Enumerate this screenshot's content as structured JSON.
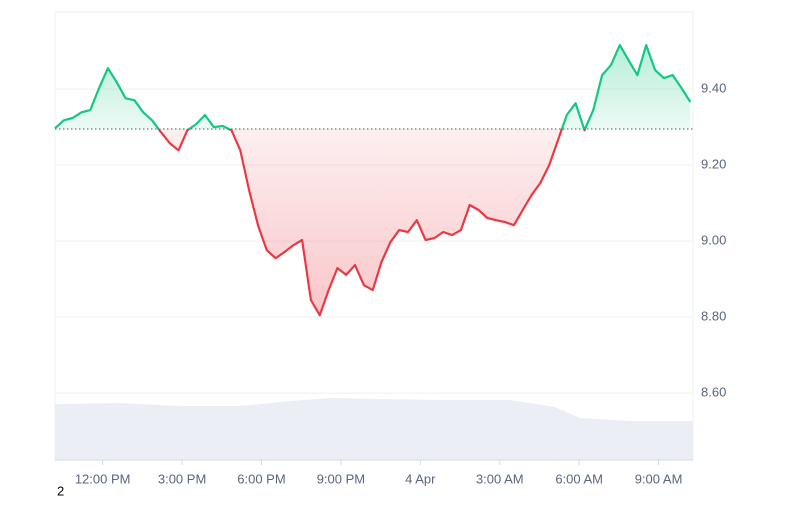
{
  "chart_data": {
    "type": "baseline-line",
    "values": [
      9.297,
      9.318,
      9.324,
      9.339,
      9.345,
      9.403,
      9.455,
      9.418,
      9.376,
      9.371,
      9.339,
      9.318,
      9.287,
      9.258,
      9.239,
      9.292,
      9.308,
      9.332,
      9.3,
      9.303,
      9.292,
      9.239,
      9.134,
      9.042,
      8.976,
      8.955,
      8.971,
      8.989,
      9.003,
      8.845,
      8.805,
      8.871,
      8.929,
      8.911,
      8.937,
      8.884,
      8.871,
      8.945,
      8.997,
      9.029,
      9.024,
      9.055,
      9.003,
      9.008,
      9.024,
      9.016,
      9.029,
      9.095,
      9.082,
      9.061,
      9.055,
      9.05,
      9.042,
      9.082,
      9.121,
      9.153,
      9.2,
      9.266,
      9.332,
      9.363,
      9.292,
      9.345,
      9.437,
      9.463,
      9.516,
      9.476,
      9.437,
      9.516,
      9.45,
      9.429,
      9.437,
      9.403,
      9.366
    ],
    "baseline": 9.295,
    "up_color": "#16c784",
    "down_color": "#ea3943",
    "xlim": [
      0,
      72.3
    ],
    "xticks": [
      {
        "value": 5.4,
        "label": "12:00 PM"
      },
      {
        "value": 14.4,
        "label": "3:00 PM"
      },
      {
        "value": 23.4,
        "label": "6:00 PM"
      },
      {
        "value": 32.4,
        "label": "9:00 PM"
      },
      {
        "value": 41.4,
        "label": "4 Apr"
      },
      {
        "value": 50.4,
        "label": "3:00 AM"
      },
      {
        "value": 59.4,
        "label": "6:00 AM"
      },
      {
        "value": 68.4,
        "label": "9:00 AM"
      }
    ],
    "ylim": [
      8.424,
      9.603
    ],
    "yticks": [
      {
        "value": 8.6,
        "label": "8.60"
      },
      {
        "value": 8.8,
        "label": "8.80"
      },
      {
        "value": 9.0,
        "label": "9.00"
      },
      {
        "value": 9.2,
        "label": "9.20"
      },
      {
        "value": 9.4,
        "label": "9.40"
      }
    ],
    "grid": true,
    "note": "2"
  }
}
